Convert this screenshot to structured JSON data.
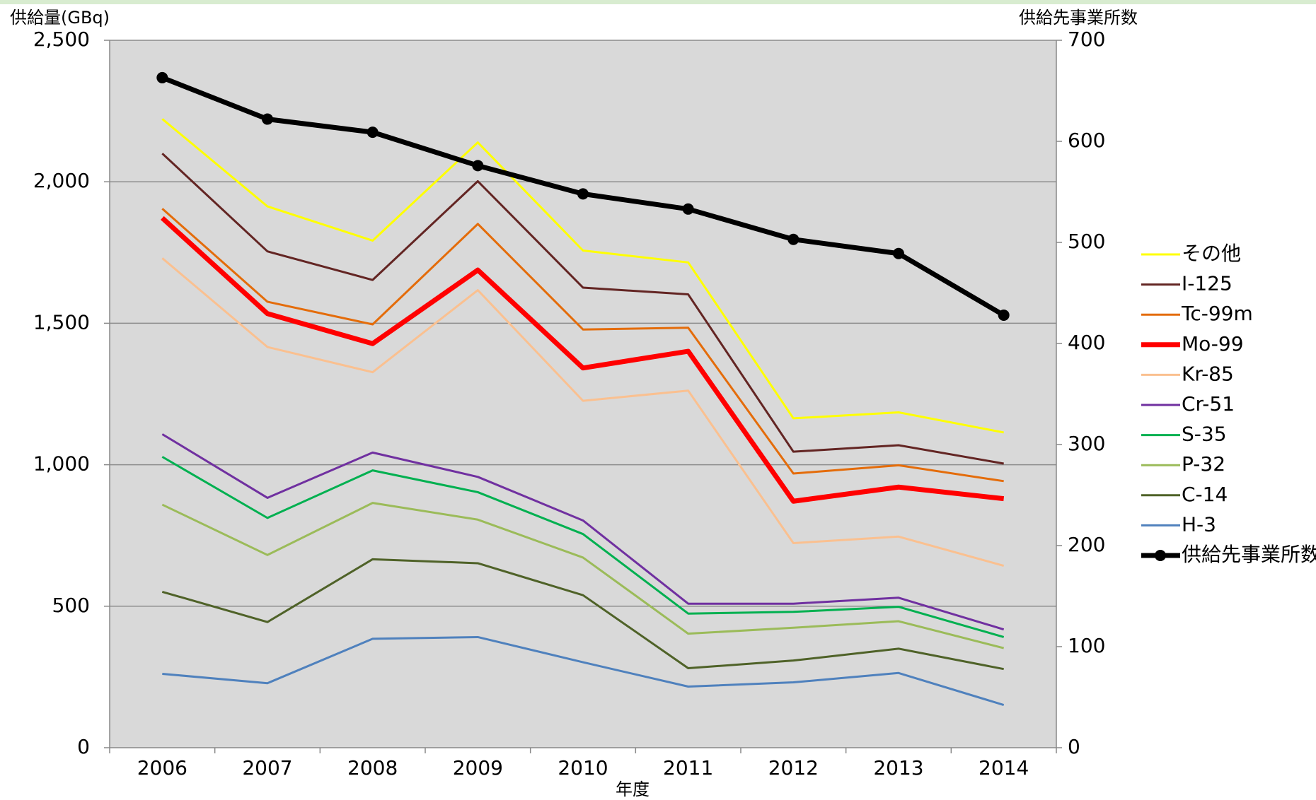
{
  "chart_data": {
    "type": "line",
    "y_label": "供給量(GBq)",
    "y2_label": "供給先事業所数",
    "x_label": "年度",
    "categories": [
      "2006",
      "2007",
      "2008",
      "2009",
      "2010",
      "2011",
      "2012",
      "2013",
      "2014"
    ],
    "ylim": [
      0,
      2500
    ],
    "yticks": [
      0,
      {
        "value": 500,
        "label": "500"
      },
      {
        "value": 1000,
        "label": "1,000"
      },
      {
        "value": 1500,
        "label": "1,500"
      },
      {
        "value": 2000,
        "label": "2,000"
      },
      {
        "value": 2500,
        "label": "2,500"
      }
    ],
    "y2lim": [
      0,
      700
    ],
    "y2ticks": [
      0,
      100,
      200,
      300,
      400,
      500,
      600,
      700
    ],
    "grid": true,
    "legend": "right",
    "background": "#d9d9d9",
    "series": [
      {
        "name": "その他",
        "color": "#ffff00",
        "line_width": 3,
        "values": [
          2222,
          1913,
          1792,
          2139,
          1757,
          1715,
          1164,
          1185,
          1114
        ]
      },
      {
        "name": "I-125",
        "color": "#632523",
        "line_width": 3,
        "values": [
          2100,
          1754,
          1653,
          2002,
          1626,
          1602,
          1046,
          1069,
          1004
        ]
      },
      {
        "name": "Tc-99m",
        "color": "#e46c0a",
        "line_width": 3,
        "values": [
          1905,
          1576,
          1496,
          1851,
          1478,
          1484,
          969,
          998,
          942
        ]
      },
      {
        "name": "Mo-99",
        "color": "#ff0000",
        "line_width": 7,
        "values": [
          1872,
          1534,
          1428,
          1688,
          1342,
          1401,
          871,
          921,
          880
        ]
      },
      {
        "name": "Kr-85",
        "color": "#fac090",
        "line_width": 3,
        "values": [
          1730,
          1416,
          1327,
          1617,
          1226,
          1262,
          723,
          746,
          643
        ]
      },
      {
        "name": "Cr-51",
        "color": "#7030a0",
        "line_width": 3,
        "values": [
          1108,
          883,
          1043,
          957,
          803,
          509,
          509,
          530,
          418
        ]
      },
      {
        "name": "S-35",
        "color": "#00b050",
        "line_width": 3,
        "values": [
          1028,
          812,
          980,
          903,
          755,
          474,
          480,
          498,
          391
        ]
      },
      {
        "name": "P-32",
        "color": "#9bbb59",
        "line_width": 3,
        "values": [
          859,
          681,
          865,
          806,
          672,
          403,
          424,
          447,
          352
        ]
      },
      {
        "name": "C-14",
        "color": "#4f6228",
        "line_width": 3,
        "values": [
          551,
          444,
          666,
          652,
          539,
          281,
          308,
          350,
          278
        ]
      },
      {
        "name": "H-3",
        "color": "#4f81bd",
        "line_width": 3,
        "values": [
          261,
          228,
          385,
          391,
          302,
          216,
          231,
          264,
          151
        ]
      },
      {
        "name": "供給先事業所数",
        "color": "#000000",
        "line_width": 7,
        "axis": "y2",
        "marker": "circle",
        "values": [
          663,
          622,
          609,
          576,
          548,
          533,
          503,
          489,
          428
        ]
      }
    ]
  }
}
